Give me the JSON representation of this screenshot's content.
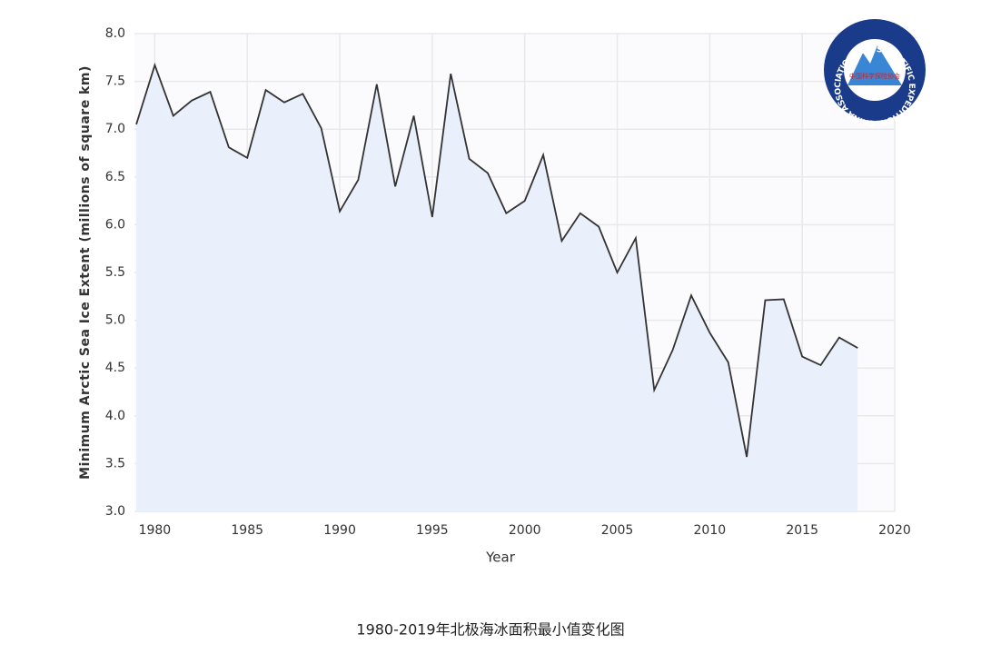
{
  "chart_data": {
    "type": "line",
    "x_label": "Year",
    "y_label": "Minimum Arctic Sea Ice Extent (millions of square km)",
    "x": [
      1979,
      1980,
      1981,
      1982,
      1983,
      1984,
      1985,
      1986,
      1987,
      1988,
      1989,
      1990,
      1991,
      1992,
      1993,
      1994,
      1995,
      1996,
      1997,
      1998,
      1999,
      2000,
      2001,
      2002,
      2003,
      2004,
      2005,
      2006,
      2007,
      2008,
      2009,
      2010,
      2011,
      2012,
      2013,
      2014,
      2015,
      2016,
      2017,
      2018
    ],
    "series": [
      {
        "color": "#333333",
        "fill": "#e9f0fb",
        "values": [
          7.05,
          7.67,
          7.14,
          7.3,
          7.39,
          6.81,
          6.7,
          7.41,
          7.28,
          7.37,
          7.01,
          6.14,
          6.47,
          7.47,
          6.4,
          7.14,
          6.08,
          7.58,
          6.69,
          6.54,
          6.12,
          6.25,
          6.73,
          5.83,
          6.12,
          5.98,
          5.5,
          5.86,
          4.27,
          4.69,
          5.26,
          4.87,
          4.56,
          3.57,
          5.21,
          5.22,
          4.62,
          4.53,
          4.82,
          4.71
        ]
      }
    ],
    "xlim": [
      1978.9,
      2020
    ],
    "xticks": [
      1980,
      1985,
      1990,
      1995,
      2000,
      2005,
      2010,
      2015,
      2020
    ],
    "ylim": [
      3,
      8
    ],
    "yticks": [
      {
        "value": 3,
        "label": "3.0"
      },
      3.5,
      {
        "value": 4,
        "label": "4.0"
      },
      4.5,
      {
        "value": 5,
        "label": "5.0"
      },
      5.5,
      {
        "value": 6,
        "label": "6.0"
      },
      6.5,
      {
        "value": 7,
        "label": "7.0"
      },
      7.5,
      {
        "value": 8,
        "label": "8.0"
      }
    ],
    "grid": true
  },
  "caption": "1980-2019年北极海冰面积最小值变化图",
  "logo": {
    "ring_text": "CHINA ASSOCIATION FOR SCIENTIFIC EXPEDITION",
    "inner_text": "中国科学探险协会"
  }
}
